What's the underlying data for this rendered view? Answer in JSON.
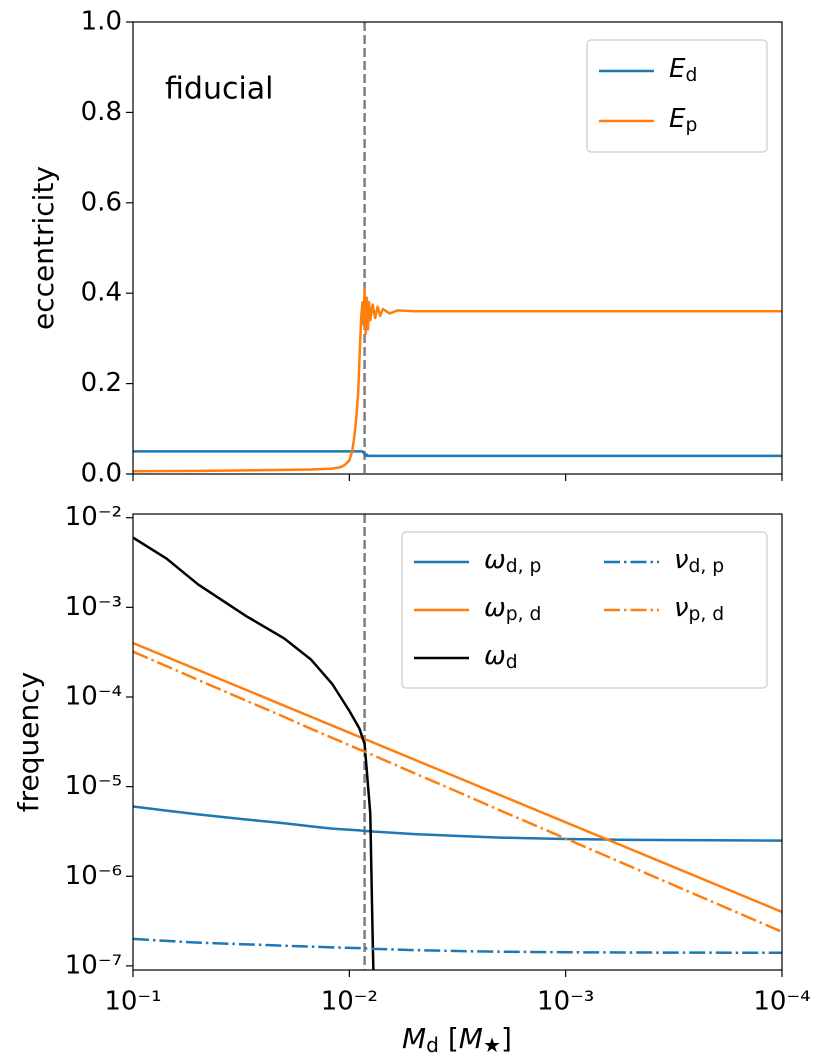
{
  "chart_data": [
    {
      "type": "line",
      "ylabel": "eccentricity",
      "annotation": "fiducial",
      "xscale": "log",
      "xlim": [
        0.1,
        0.0001
      ],
      "ylim": [
        0,
        1
      ],
      "yticks": [
        {
          "value": 0,
          "label": "0.0"
        },
        0.2,
        0.4,
        0.6,
        0.8,
        {
          "value": 1,
          "label": "1.0"
        }
      ],
      "vline": 0.0085,
      "vline_color": "#808080",
      "legend": "upper right",
      "x": [
        0.1,
        0.05,
        0.03,
        0.02,
        0.015,
        0.012,
        0.011,
        0.0105,
        0.01,
        0.0097,
        0.0095,
        0.0093,
        0.0091,
        0.009,
        0.0089,
        0.0088,
        0.0087,
        0.0086,
        0.0085,
        0.0084,
        0.0083,
        0.0082,
        0.0081,
        0.008,
        0.0078,
        0.0076,
        0.0074,
        0.0072,
        0.007,
        0.0065,
        0.006,
        0.005,
        0.003,
        0.001,
        0.0001
      ],
      "series": [
        {
          "name": "Ed",
          "color": "#1f77b4",
          "style": "solid",
          "values": [
            0.05,
            0.05,
            0.05,
            0.05,
            0.05,
            0.05,
            0.05,
            0.05,
            0.05,
            0.05,
            0.05,
            0.05,
            0.05,
            0.05,
            0.05,
            0.05,
            0.05,
            0.047,
            0.044,
            0.04,
            0.043,
            0.04,
            0.04,
            0.04,
            0.04,
            0.04,
            0.04,
            0.04,
            0.04,
            0.04,
            0.04,
            0.04,
            0.04,
            0.04,
            0.04
          ]
        },
        {
          "name": "Ep",
          "color": "#ff7f0e",
          "style": "solid",
          "values": [
            0.006,
            0.007,
            0.008,
            0.009,
            0.01,
            0.012,
            0.015,
            0.02,
            0.03,
            0.05,
            0.08,
            0.12,
            0.18,
            0.24,
            0.3,
            0.35,
            0.38,
            0.33,
            0.41,
            0.31,
            0.39,
            0.32,
            0.38,
            0.34,
            0.375,
            0.345,
            0.37,
            0.35,
            0.365,
            0.355,
            0.362,
            0.36,
            0.36,
            0.36,
            0.36
          ]
        }
      ]
    },
    {
      "type": "line",
      "ylabel": "frequency",
      "xlabel": "Md [M★]",
      "xscale": "log",
      "yscale": "log",
      "xlim": [
        0.1,
        0.0001
      ],
      "ylim": [
        9e-08,
        0.011
      ],
      "xticks": [
        {
          "value": 0.1,
          "label": "10⁻¹"
        },
        {
          "value": 0.01,
          "label": "10⁻²"
        },
        {
          "value": 0.001,
          "label": "10⁻³"
        },
        {
          "value": 0.0001,
          "label": "10⁻⁴"
        }
      ],
      "yticks": [
        {
          "value": 1e-07,
          "label": "10⁻⁷"
        },
        {
          "value": 1e-06,
          "label": "10⁻⁶"
        },
        {
          "value": 1e-05,
          "label": "10⁻⁵"
        },
        {
          "value": 0.0001,
          "label": "10⁻⁴"
        },
        {
          "value": 0.001,
          "label": "10⁻³"
        },
        {
          "value": 0.01,
          "label": "10⁻²"
        }
      ],
      "vline": 0.0085,
      "vline_color": "#808080",
      "legend": "upper right",
      "legend_columns": 2,
      "x": [
        0.1,
        0.07,
        0.05,
        0.03,
        0.02,
        0.015,
        0.012,
        0.01,
        0.009,
        0.0085,
        0.008,
        0.0079,
        0.0078,
        0.0077,
        0.005,
        0.003,
        0.002,
        0.001,
        0.0005,
        0.0001
      ],
      "series": [
        {
          "name": "ωd, p",
          "color": "#1f77b4",
          "style": "solid",
          "values": [
            6e-06,
            5.4e-06,
            4.9e-06,
            4.3e-06,
            3.9e-06,
            3.6e-06,
            3.4e-06,
            3.3e-06,
            3.25e-06,
            3.2e-06,
            3.18e-06,
            3.17e-06,
            3.16e-06,
            3.15e-06,
            2.95e-06,
            2.8e-06,
            2.7e-06,
            2.6e-06,
            2.55e-06,
            2.5e-06
          ]
        },
        {
          "name": "ωp, d",
          "color": "#ff7f0e",
          "style": "solid",
          "values": [
            0.0004,
            0.00028,
            0.0002,
            0.00012,
            8e-05,
            6e-05,
            4.8e-05,
            4e-05,
            3.6e-05,
            3.4e-05,
            3.2e-05,
            3.16e-05,
            3.12e-05,
            3.08e-05,
            2e-05,
            1.2e-05,
            8e-06,
            4e-06,
            2e-06,
            4e-07
          ]
        },
        {
          "name": "ωd",
          "color": "#000000",
          "style": "solid",
          "values": [
            0.006,
            0.0035,
            0.0018,
            0.0008,
            0.00045,
            0.00026,
            0.00014,
            7e-05,
            4.5e-05,
            3e-05,
            5e-06,
            1e-06,
            2e-07,
            5e-08,
            null,
            null,
            null,
            null,
            null,
            null
          ]
        },
        {
          "name": "νd, p",
          "color": "#1f77b4",
          "style": "dashdot",
          "values": [
            2e-07,
            1.9e-07,
            1.82e-07,
            1.74e-07,
            1.68e-07,
            1.64e-07,
            1.61e-07,
            1.59e-07,
            1.58e-07,
            1.57e-07,
            1.56e-07,
            1.56e-07,
            1.56e-07,
            1.55e-07,
            1.5e-07,
            1.46e-07,
            1.44e-07,
            1.42e-07,
            1.41e-07,
            1.4e-07
          ]
        },
        {
          "name": "νp, d",
          "color": "#ff7f0e",
          "style": "dashdot",
          "values": [
            0.00032,
            0.000221,
            0.000155,
            9.1e-05,
            6e-05,
            4.4e-05,
            3.5e-05,
            2.9e-05,
            2.6e-05,
            2.47e-05,
            2.31e-05,
            2.28e-05,
            2.25e-05,
            2.22e-05,
            1.41e-05,
            8.3e-06,
            5.4e-06,
            2.64e-06,
            1.28e-06,
            2.4e-07
          ]
        }
      ]
    }
  ]
}
